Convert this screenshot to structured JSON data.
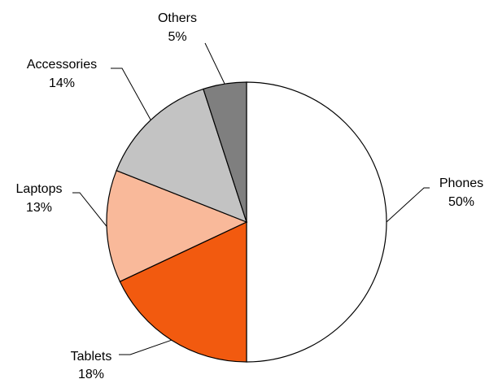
{
  "chart_data": {
    "type": "pie",
    "title": "",
    "start_angle_deg": 0,
    "direction": "clockwise",
    "slices": [
      {
        "label": "Phones",
        "percent_label": "50%",
        "value": 50,
        "color": "#ffffff"
      },
      {
        "label": "Tablets",
        "percent_label": "18%",
        "value": 18,
        "color": "#f25a0f"
      },
      {
        "label": "Laptops",
        "percent_label": "13%",
        "value": 13,
        "color": "#f9b99a"
      },
      {
        "label": "Accessories",
        "percent_label": "14%",
        "value": 14,
        "color": "#c3c3c3"
      },
      {
        "label": "Others",
        "percent_label": "5%",
        "value": 5,
        "color": "#7f7f7f"
      }
    ]
  }
}
